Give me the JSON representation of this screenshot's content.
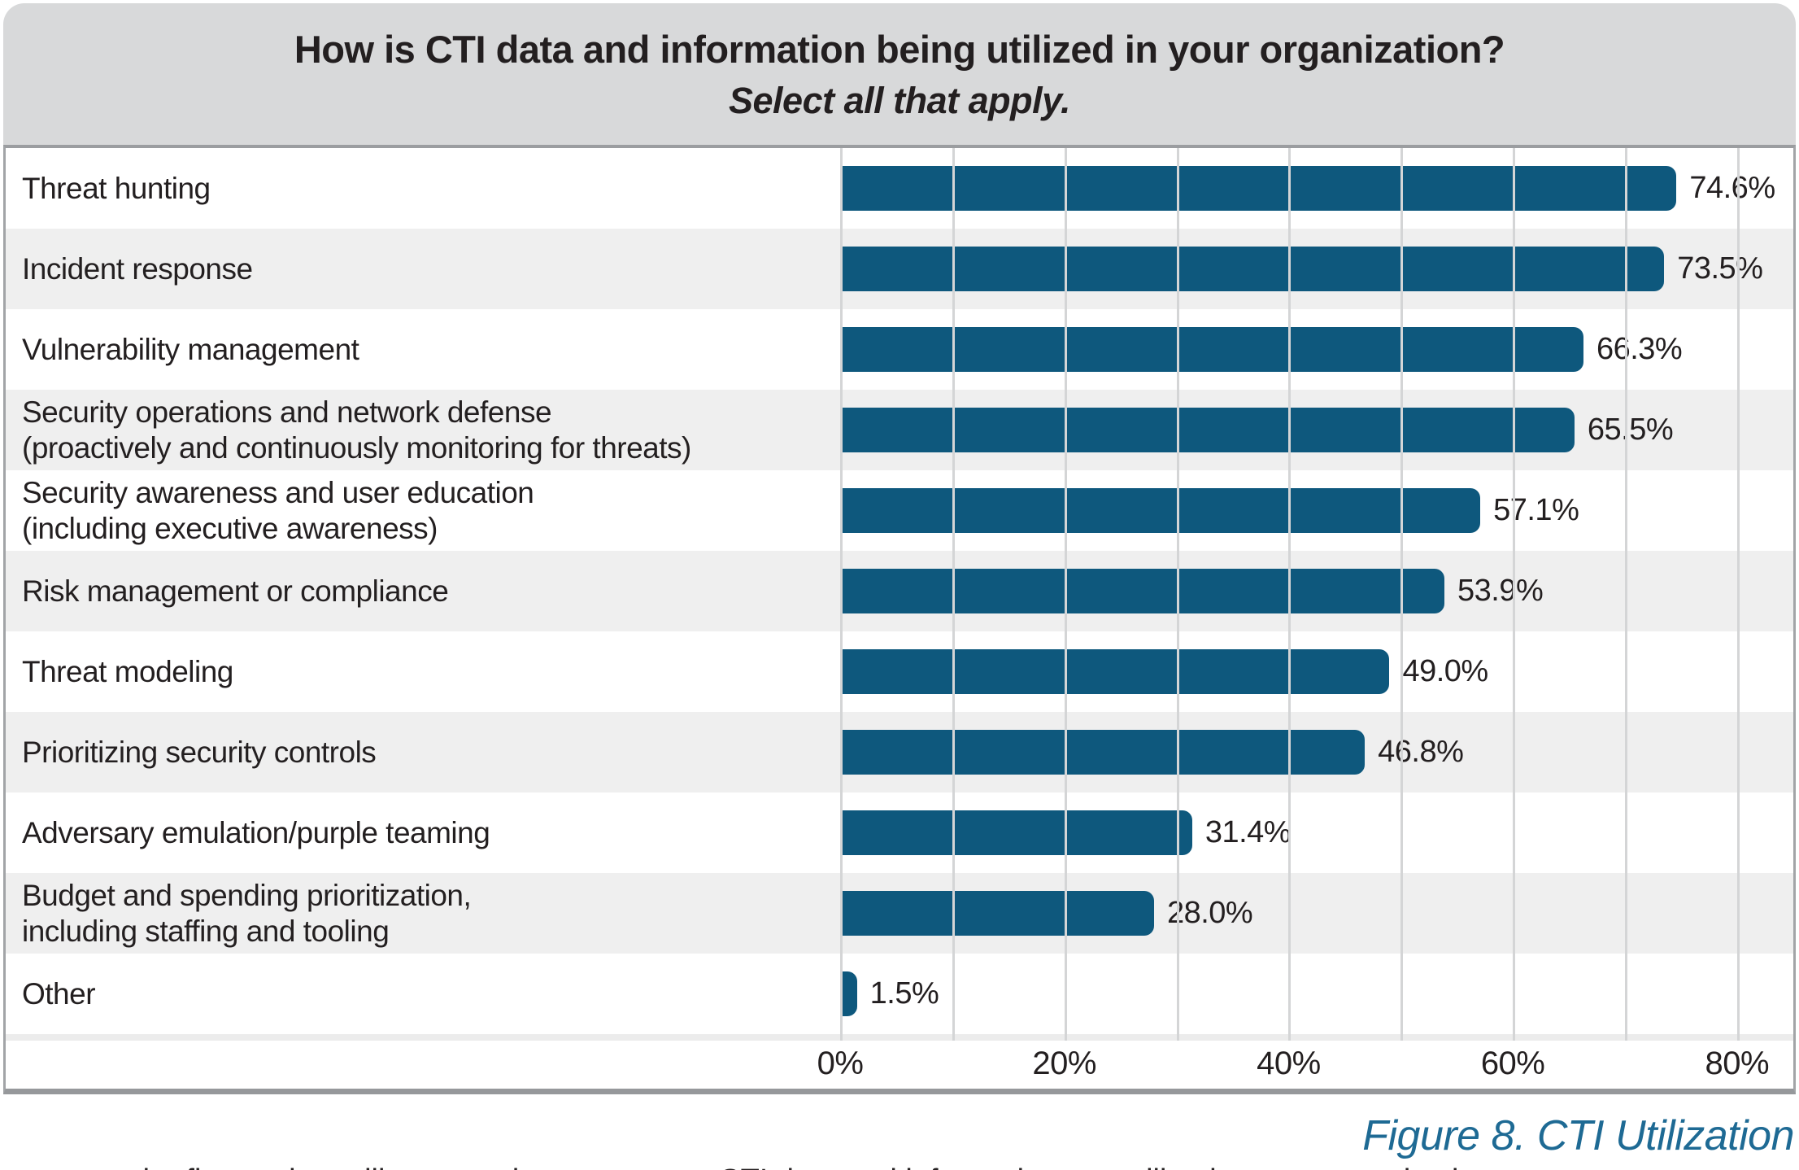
{
  "title": {
    "line1": "How is CTI data and information being utilized in your organization?",
    "line2": "Select all that apply."
  },
  "caption": "Figure 8. CTI Utilization",
  "cropped_bottom_text": "the figure above illustrates the many ways CTI data and information are utilized across organizations",
  "chart_data": {
    "type": "bar",
    "orientation": "horizontal",
    "title": "How is CTI data and information being utilized in your organization? Select all that apply.",
    "categories": [
      "Threat hunting",
      "Incident response",
      "Vulnerability management",
      "Security operations and network defense (proactively and continuously monitoring for threats)",
      "Security awareness and user education (including executive awareness)",
      "Risk management or compliance",
      "Threat modeling",
      "Prioritizing security controls",
      "Adversary emulation/purple teaming",
      "Budget and spending prioritization, including staffing and tooling",
      "Other"
    ],
    "category_lines": [
      [
        "Threat hunting"
      ],
      [
        "Incident response"
      ],
      [
        "Vulnerability management"
      ],
      [
        "Security operations and network defense",
        "(proactively and continuously monitoring for threats)"
      ],
      [
        "Security awareness and user education",
        "(including executive awareness)"
      ],
      [
        "Risk management or compliance"
      ],
      [
        "Threat modeling"
      ],
      [
        "Prioritizing security controls"
      ],
      [
        "Adversary emulation/purple teaming"
      ],
      [
        "Budget and spending prioritization,",
        "including staffing and tooling"
      ],
      [
        "Other"
      ]
    ],
    "values": [
      74.6,
      73.5,
      66.3,
      65.5,
      57.1,
      53.9,
      49.0,
      46.8,
      31.4,
      28.0,
      1.5
    ],
    "value_labels": [
      "74.6%",
      "73.5%",
      "66.3%",
      "65.5%",
      "57.1%",
      "53.9%",
      "49.0%",
      "46.8%",
      "31.4%",
      "28.0%",
      "1.5%"
    ],
    "x_axis": {
      "tick_labels": [
        "0%",
        "20%",
        "40%",
        "60%",
        "80%"
      ],
      "tick_values": [
        0,
        20,
        40,
        60,
        80
      ],
      "range": [
        0,
        80
      ],
      "minor_gridline_step": 10,
      "gridlines": true
    },
    "legend": "none",
    "colors": {
      "bar": "#0e587d",
      "row_alt_background": "#efefef",
      "row_background": "#ffffff",
      "title_band_background": "#d8d9da",
      "gridline": "#d4d5d6",
      "text": "#231f20",
      "caption": "#1e6a94",
      "border": "#96989b"
    }
  }
}
